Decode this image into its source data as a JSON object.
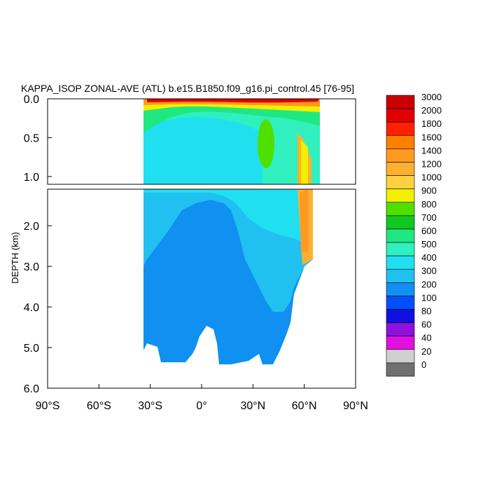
{
  "chart_data": {
    "type": "heatmap",
    "title": "KAPPA_ISOP ZONAL-AVE (ATL) b.e15.B1850.f09_g16.pi_control.45 [76-95]",
    "ylabel": "DEPTH (km)",
    "xlabel": "",
    "x_range": [
      -90,
      90
    ],
    "x_ticks": [
      "90°S",
      "60°S",
      "30°S",
      "0°",
      "30°N",
      "60°N",
      "90°N"
    ],
    "x_tick_values": [
      -90,
      -60,
      -30,
      0,
      30,
      60,
      90
    ],
    "upper_panel": {
      "depth_range": [
        0.0,
        1.1
      ],
      "ticks": [
        "0.0",
        "0.5",
        "1.0"
      ],
      "tick_values": [
        0.0,
        0.5,
        1.0
      ]
    },
    "lower_panel": {
      "depth_range": [
        1.1,
        6.0
      ],
      "ticks": [
        "2.0",
        "3.0",
        "4.0",
        "5.0",
        "6.0"
      ],
      "tick_values": [
        2.0,
        3.0,
        4.0,
        5.0,
        6.0
      ]
    },
    "colorbar": {
      "levels": [
        "3000",
        "2000",
        "1800",
        "1600",
        "1400",
        "1200",
        "1000",
        "900",
        "800",
        "700",
        "600",
        "500",
        "400",
        "300",
        "200",
        "100",
        "80",
        "60",
        "40",
        "20",
        "0"
      ],
      "colors": [
        "#c80000",
        "#e00000",
        "#ff2000",
        "#ff7f00",
        "#ff9a20",
        "#ffb030",
        "#ffd040",
        "#f0f000",
        "#50e000",
        "#10c820",
        "#20e880",
        "#30f0c0",
        "#20e0f0",
        "#20c0f0",
        "#1090f0",
        "#0050ff",
        "#1010e0",
        "#9010e0",
        "#e010e0",
        "#d0d0d0",
        "#707070"
      ]
    }
  }
}
